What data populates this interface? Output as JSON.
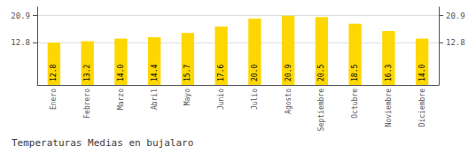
{
  "chart_data": {
    "type": "bar",
    "title": "Temperaturas Medias en bujalaro",
    "categories": [
      "Enero",
      "Febrero",
      "Marzo",
      "Abril",
      "Mayo",
      "Junio",
      "Julio",
      "Agosto",
      "Septiembre",
      "Octubre",
      "Noviembre",
      "Diciembre"
    ],
    "values": [
      12.8,
      13.2,
      14.0,
      14.4,
      15.7,
      17.6,
      20.0,
      20.9,
      20.5,
      18.5,
      16.3,
      14.0
    ],
    "value_labels": [
      "12.8",
      "13.2",
      "14.0",
      "14.4",
      "15.7",
      "17.6",
      "20.0",
      "20.9",
      "20.5",
      "18.5",
      "16.3",
      "14.0"
    ],
    "data_labels": true,
    "color": "#FFD700",
    "ylim": [
      0.0,
      23.5
    ],
    "yticks": [
      12.8,
      20.9
    ],
    "y2lim": [
      0.0,
      23.5
    ],
    "y2ticks": [
      12.8,
      20.9
    ],
    "grid": true
  }
}
